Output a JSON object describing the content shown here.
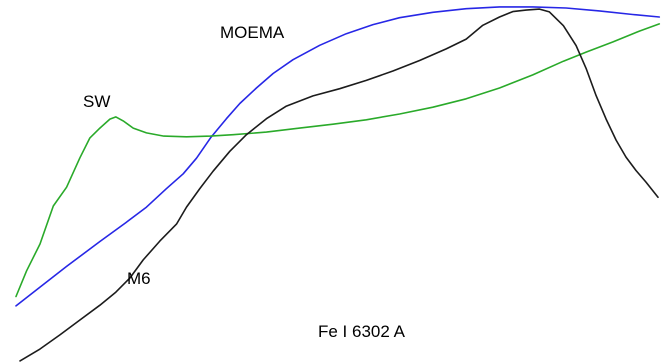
{
  "chart_data": {
    "type": "line",
    "title": "",
    "xlabel": "",
    "ylabel": "",
    "annotation": "Fe I 6302 A",
    "grid": false,
    "xlim": [
      0,
      100
    ],
    "ylim": [
      0,
      100
    ],
    "series": [
      {
        "name": "MOEMA",
        "color": "#2727e6",
        "points": [
          [
            2.4,
            15.5
          ],
          [
            6,
            20.7
          ],
          [
            10,
            26.4
          ],
          [
            15,
            33.3
          ],
          [
            18.9,
            38.5
          ],
          [
            22,
            42.8
          ],
          [
            25,
            47.9
          ],
          [
            27.5,
            52
          ],
          [
            29.5,
            56.3
          ],
          [
            31.6,
            61.9
          ],
          [
            34,
            67.2
          ],
          [
            36,
            71.4
          ],
          [
            38.5,
            75.7
          ],
          [
            41,
            79.7
          ],
          [
            44,
            83.5
          ],
          [
            48,
            87.5
          ],
          [
            52,
            90.7
          ],
          [
            56,
            93.2
          ],
          [
            60,
            95.1
          ],
          [
            65,
            96.6
          ],
          [
            70,
            97.6
          ],
          [
            75,
            98.1
          ],
          [
            80,
            98.1
          ],
          [
            85,
            97.8
          ],
          [
            90,
            97
          ],
          [
            95,
            96
          ],
          [
            99,
            95.3
          ]
        ]
      },
      {
        "name": "SW",
        "color": "#2aaa2a",
        "points": [
          [
            2.4,
            18.1
          ],
          [
            4,
            25.2
          ],
          [
            6,
            32.6
          ],
          [
            8,
            43.1
          ],
          [
            10,
            48.3
          ],
          [
            12,
            56.4
          ],
          [
            13.5,
            61.9
          ],
          [
            15,
            64.6
          ],
          [
            16.5,
            67.1
          ],
          [
            17.4,
            67.7
          ],
          [
            18.5,
            66.6
          ],
          [
            20,
            64.6
          ],
          [
            22,
            63.3
          ],
          [
            24.6,
            62.4
          ],
          [
            28,
            62.2
          ],
          [
            31.6,
            62.4
          ],
          [
            35,
            62.8
          ],
          [
            40,
            63.5
          ],
          [
            45,
            64.6
          ],
          [
            50,
            65.7
          ],
          [
            55,
            66.9
          ],
          [
            60,
            68.5
          ],
          [
            65,
            70.4
          ],
          [
            70,
            72.7
          ],
          [
            75,
            75.7
          ],
          [
            80,
            79.3
          ],
          [
            84.6,
            83.1
          ],
          [
            88,
            85.6
          ],
          [
            92,
            88.4
          ],
          [
            96,
            91.4
          ],
          [
            99,
            93.4
          ]
        ]
      },
      {
        "name": "M6",
        "color": "#1c1c1c",
        "points": [
          [
            3,
            0.3
          ],
          [
            6,
            3.6
          ],
          [
            9,
            7.5
          ],
          [
            12,
            11.6
          ],
          [
            15,
            15.7
          ],
          [
            17.4,
            19.3
          ],
          [
            19.5,
            23.2
          ],
          [
            21.5,
            28.2
          ],
          [
            24,
            33.4
          ],
          [
            26.5,
            38.1
          ],
          [
            28,
            42.8
          ],
          [
            30,
            47.9
          ],
          [
            32,
            52.7
          ],
          [
            34.5,
            58.2
          ],
          [
            37,
            62.8
          ],
          [
            40,
            67.2
          ],
          [
            43,
            70.7
          ],
          [
            47,
            73.5
          ],
          [
            51,
            75.5
          ],
          [
            55,
            77.8
          ],
          [
            59,
            80.4
          ],
          [
            63,
            83.3
          ],
          [
            67,
            86.5
          ],
          [
            70,
            89.2
          ],
          [
            72.5,
            93
          ],
          [
            75,
            95.3
          ],
          [
            77,
            96.8
          ],
          [
            79,
            97.2
          ],
          [
            81,
            97.5
          ],
          [
            82.5,
            96.7
          ],
          [
            84.6,
            92.9
          ],
          [
            86.5,
            87.4
          ],
          [
            88,
            81.1
          ],
          [
            89.5,
            73.6
          ],
          [
            91,
            67.1
          ],
          [
            92.5,
            61.3
          ],
          [
            94,
            56.6
          ],
          [
            95.5,
            52.9
          ],
          [
            97,
            49.7
          ],
          [
            98.8,
            45.5
          ]
        ]
      }
    ]
  }
}
